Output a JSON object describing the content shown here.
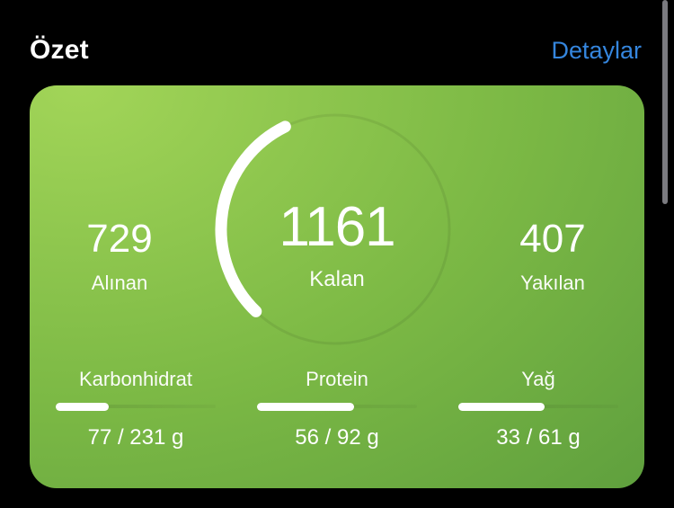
{
  "header": {
    "title": "Özet",
    "details_label": "Detaylar"
  },
  "colors": {
    "background": "#000000",
    "accent_blue": "#3586de",
    "card_grad_1": "#a2d558",
    "card_grad_2": "#7cb945",
    "card_grad_3": "#5c9d3d",
    "scrollbar_color": "#7b7b80",
    "text_white": "#ffffff"
  },
  "summary_card": {
    "ring": {
      "start_angle_deg": -116,
      "sweep_deg": 110,
      "radius": 127
    },
    "stats": {
      "consumed": {
        "value": "729",
        "label": "Alınan"
      },
      "remaining": {
        "value": "1161",
        "label": "Kalan"
      },
      "burned": {
        "value": "407",
        "label": "Yakılan"
      }
    },
    "macros": [
      {
        "name": "Karbonhidrat",
        "current": 77,
        "target": 231,
        "display": "77 / 231 g"
      },
      {
        "name": "Protein",
        "current": 56,
        "target": 92,
        "display": "56 / 92 g"
      },
      {
        "name": "Yağ",
        "current": 33,
        "target": 61,
        "display": "33 / 61 g"
      }
    ]
  }
}
